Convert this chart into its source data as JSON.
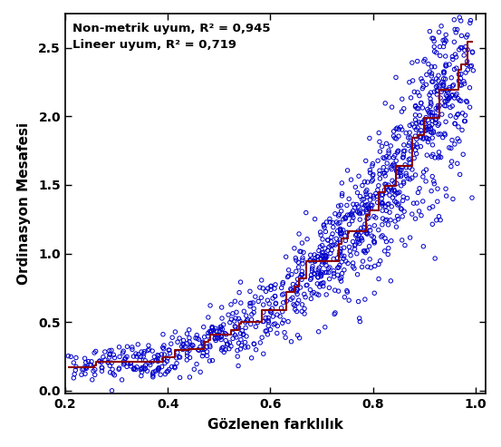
{
  "xlabel": "Gözlenen farklılık",
  "ylabel": "Ordinasyon Mesafesi",
  "annotation_line1": "Non-metrik uyum, R² = 0,945",
  "annotation_line2": "Lineer uyum, R² = 0,719",
  "xlim": [
    0.2,
    1.02
  ],
  "ylim": [
    -0.02,
    2.75
  ],
  "xticks": [
    0.2,
    0.4,
    0.6,
    0.8,
    1.0
  ],
  "yticks": [
    0.0,
    0.5,
    1.0,
    1.5,
    2.0,
    2.5
  ],
  "scatter_color": "#0000CC",
  "line_color": "#8B0000",
  "background_color": "#FFFFFF",
  "seed": 7,
  "n_points": 1200
}
